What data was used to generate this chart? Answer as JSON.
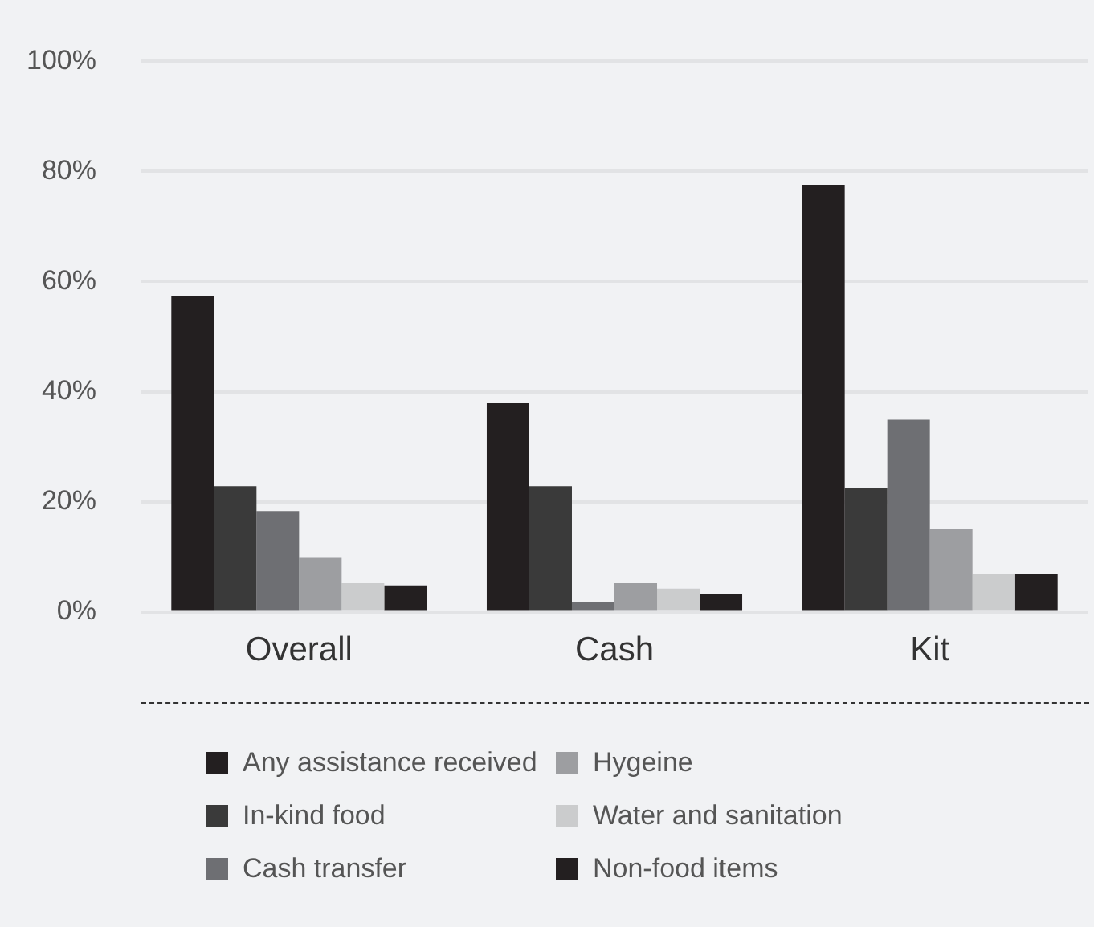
{
  "chart_data": {
    "type": "bar",
    "categories": [
      "Overall",
      "Cash",
      "Kit"
    ],
    "series": [
      {
        "name": "Any assistance received",
        "color": "#231f20",
        "values": [
          57.3,
          37.9,
          77.6
        ]
      },
      {
        "name": "In-kind food",
        "color": "#3a3a3a",
        "values": [
          22.8,
          22.8,
          22.4
        ]
      },
      {
        "name": "Cash transfer",
        "color": "#6e6f73",
        "values": [
          18.3,
          1.7,
          34.9
        ]
      },
      {
        "name": "Hygeine",
        "color": "#9d9ea1",
        "values": [
          9.8,
          5.2,
          15
        ]
      },
      {
        "name": "Water and sanitation",
        "color": "#cbcccd",
        "values": [
          5.2,
          4.2,
          6.9
        ]
      },
      {
        "name": "Non-food items",
        "color": "#231f20",
        "values": [
          4.8,
          3.3,
          6.9
        ]
      }
    ],
    "ylim": [
      0,
      100
    ],
    "yticks": [
      {
        "value": 0,
        "label": "0%"
      },
      {
        "value": 20,
        "label": "20%"
      },
      {
        "value": 40,
        "label": "40%"
      },
      {
        "value": 60,
        "label": "60%"
      },
      {
        "value": 80,
        "label": "80%"
      },
      {
        "value": 100,
        "label": "100%"
      }
    ],
    "grid": "y",
    "legend": "bottom"
  }
}
